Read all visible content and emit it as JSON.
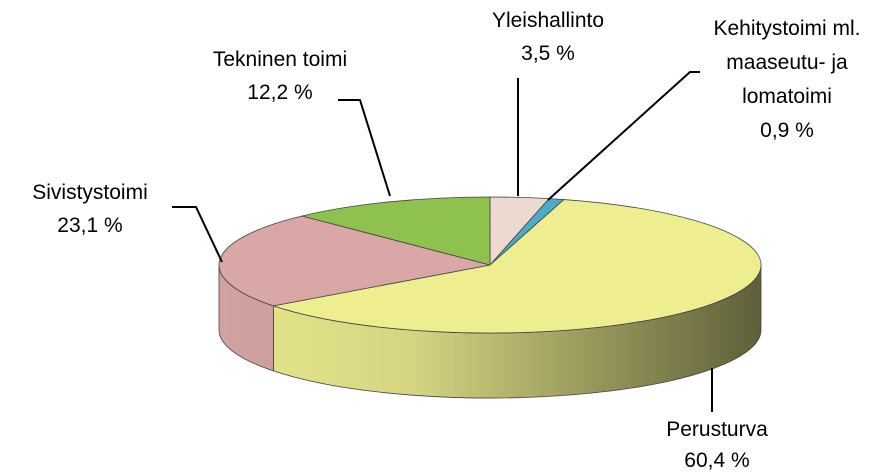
{
  "chart_data": {
    "type": "pie3d",
    "categories": [
      "Yleishallinto",
      "Kehitystoimi ml. maaseutu- ja lomatoimi",
      "Perusturva",
      "Sivistystoimi",
      "Tekninen toimi"
    ],
    "values": [
      3.5,
      0.9,
      60.4,
      23.1,
      12.2
    ],
    "value_labels": [
      "3,5 %",
      "0,9 %",
      "60,4 %",
      "23,1 %",
      "12,2 %"
    ],
    "colors": [
      "#ecdad0",
      "#4bacc6",
      "#eeee90",
      "#d9a7a5",
      "#8fc14f"
    ]
  }
}
